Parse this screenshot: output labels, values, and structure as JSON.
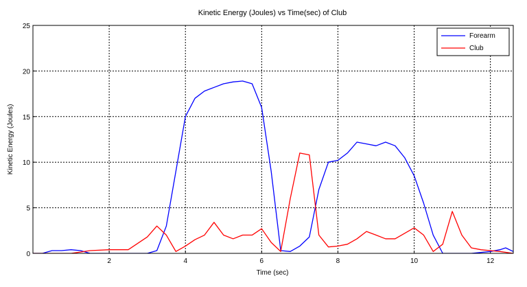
{
  "chart_data": {
    "type": "line",
    "title": "Kinetic Energy (Joules) vs  Time(sec) of Club",
    "xlabel": "Time (sec)",
    "ylabel": "Kinetic Energy (Joules)",
    "xlim": [
      0,
      12.6
    ],
    "ylim": [
      0,
      25
    ],
    "xticks": [
      2,
      4,
      6,
      8,
      10,
      12
    ],
    "yticks": [
      0,
      5,
      10,
      15,
      20,
      25
    ],
    "grid": true,
    "legend_position": "top-right",
    "series": [
      {
        "name": "Forearm",
        "color": "#0000ff",
        "x": [
          0,
          0.25,
          0.5,
          0.75,
          1.0,
          1.25,
          1.5,
          2.0,
          2.5,
          3.0,
          3.25,
          3.5,
          3.75,
          4.0,
          4.25,
          4.5,
          4.75,
          5.0,
          5.25,
          5.5,
          5.75,
          6.0,
          6.25,
          6.5,
          6.75,
          7.0,
          7.25,
          7.5,
          7.75,
          8.0,
          8.25,
          8.5,
          8.75,
          9.0,
          9.25,
          9.5,
          9.75,
          10.0,
          10.25,
          10.5,
          10.75,
          11.0,
          11.5,
          12.0,
          12.25,
          12.4,
          12.6
        ],
        "y": [
          0,
          0,
          0.3,
          0.3,
          0.4,
          0.3,
          0,
          0,
          0,
          0,
          0.3,
          3.0,
          9.0,
          15.0,
          17.0,
          17.8,
          18.2,
          18.6,
          18.8,
          18.9,
          18.6,
          16.0,
          9.0,
          0.3,
          0.2,
          0.8,
          1.8,
          7.0,
          10.0,
          10.2,
          11.0,
          12.2,
          12.0,
          11.8,
          12.2,
          11.8,
          10.5,
          8.5,
          5.5,
          2.0,
          0,
          0,
          0,
          0.2,
          0.4,
          0.6,
          0.2
        ]
      },
      {
        "name": "Club",
        "color": "#ff0000",
        "x": [
          0,
          0.5,
          1.0,
          1.5,
          2.0,
          2.5,
          3.0,
          3.25,
          3.5,
          3.75,
          4.0,
          4.25,
          4.5,
          4.75,
          5.0,
          5.25,
          5.5,
          5.75,
          6.0,
          6.25,
          6.5,
          6.75,
          7.0,
          7.25,
          7.5,
          7.75,
          8.0,
          8.25,
          8.5,
          8.75,
          9.0,
          9.25,
          9.5,
          9.75,
          10.0,
          10.25,
          10.5,
          10.75,
          11.0,
          11.25,
          11.5,
          11.75,
          12.0,
          12.25,
          12.6
        ],
        "y": [
          0,
          0,
          0,
          0.3,
          0.4,
          0.4,
          1.8,
          3.0,
          2.0,
          0.2,
          0.8,
          1.5,
          2.0,
          3.4,
          2.0,
          1.6,
          2.0,
          2.0,
          2.7,
          1.2,
          0.2,
          6.0,
          11.0,
          10.8,
          2.0,
          0.7,
          0.8,
          1.0,
          1.6,
          2.4,
          2.0,
          1.6,
          1.6,
          2.2,
          2.8,
          2.0,
          0.2,
          1.0,
          4.6,
          2.0,
          0.6,
          0.4,
          0.3,
          0.2,
          0
        ]
      }
    ]
  }
}
